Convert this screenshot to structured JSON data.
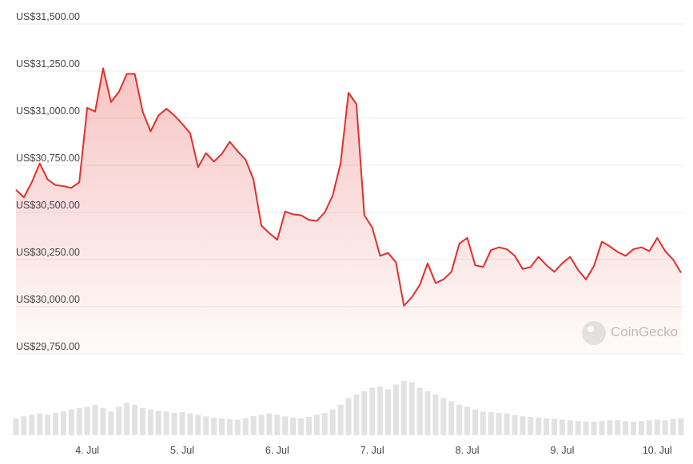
{
  "chart_data": {
    "type": "line",
    "categories": [
      null,
      null,
      null,
      null,
      null,
      null,
      null,
      null,
      null,
      "4. Jul",
      null,
      null,
      null,
      null,
      null,
      null,
      null,
      null,
      null,
      null,
      null,
      "5. Jul",
      null,
      null,
      null,
      null,
      null,
      null,
      null,
      null,
      null,
      null,
      null,
      "6. Jul",
      null,
      null,
      null,
      null,
      null,
      null,
      null,
      null,
      null,
      null,
      null,
      "7. Jul",
      null,
      null,
      null,
      null,
      null,
      null,
      null,
      null,
      null,
      null,
      null,
      "8. Jul",
      null,
      null,
      null,
      null,
      null,
      null,
      null,
      null,
      null,
      null,
      null,
      "9. Jul",
      null,
      null,
      null,
      null,
      null,
      null,
      null,
      null,
      null,
      null,
      null,
      "10. Jul",
      null,
      null,
      null
    ],
    "values": [
      30620,
      30580,
      30660,
      30760,
      30675,
      30645,
      30640,
      30630,
      30660,
      31055,
      31035,
      31265,
      31085,
      31140,
      31235,
      31235,
      31035,
      30930,
      31015,
      31050,
      31015,
      30970,
      30920,
      30740,
      30815,
      30770,
      30810,
      30875,
      30825,
      30780,
      30675,
      30430,
      30390,
      30355,
      30505,
      30490,
      30485,
      30460,
      30455,
      30500,
      30590,
      30760,
      31135,
      31075,
      30485,
      30420,
      30270,
      30285,
      30235,
      30005,
      30050,
      30115,
      30230,
      30125,
      30145,
      30185,
      30335,
      30365,
      30220,
      30210,
      30300,
      30315,
      30305,
      30270,
      30200,
      30210,
      30265,
      30220,
      30185,
      30230,
      30265,
      30195,
      30145,
      30215,
      30345,
      30320,
      30290,
      30270,
      30305,
      30315,
      30295,
      30365,
      30295,
      30250,
      30180
    ],
    "color": "#e0302c",
    "ylim": [
      29750,
      31500
    ],
    "yticks": [
      {
        "value": 29750,
        "label": "US$29,750.00"
      },
      {
        "value": 30000,
        "label": "US$30,000.00"
      },
      {
        "value": 30250,
        "label": "US$30,250.00"
      },
      {
        "value": 30500,
        "label": "US$30,500.00"
      },
      {
        "value": 30750,
        "label": "US$30,750.00"
      },
      {
        "value": 31000,
        "label": "US$31,000.00"
      },
      {
        "value": 31250,
        "label": "US$31,250.00"
      },
      {
        "value": 31500,
        "label": "US$31,500.00"
      }
    ],
    "grid": true,
    "volumes": [
      25,
      28,
      30,
      32,
      30,
      33,
      35,
      38,
      40,
      42,
      45,
      40,
      35,
      42,
      48,
      45,
      40,
      38,
      36,
      35,
      33,
      34,
      32,
      30,
      28,
      26,
      25,
      24,
      23,
      25,
      28,
      30,
      32,
      30,
      28,
      26,
      25,
      27,
      30,
      33,
      38,
      45,
      55,
      60,
      65,
      70,
      72,
      68,
      75,
      80,
      78,
      70,
      65,
      60,
      55,
      50,
      45,
      42,
      38,
      35,
      34,
      33,
      32,
      30,
      28,
      27,
      26,
      25,
      24,
      23,
      22,
      21,
      20,
      20,
      21,
      22,
      22,
      21,
      20,
      21,
      22,
      23,
      22,
      24,
      25
    ],
    "volume_color": "#e2e2e2",
    "y2lim": [
      0,
      100
    ],
    "watermark": "CoinGecko"
  }
}
